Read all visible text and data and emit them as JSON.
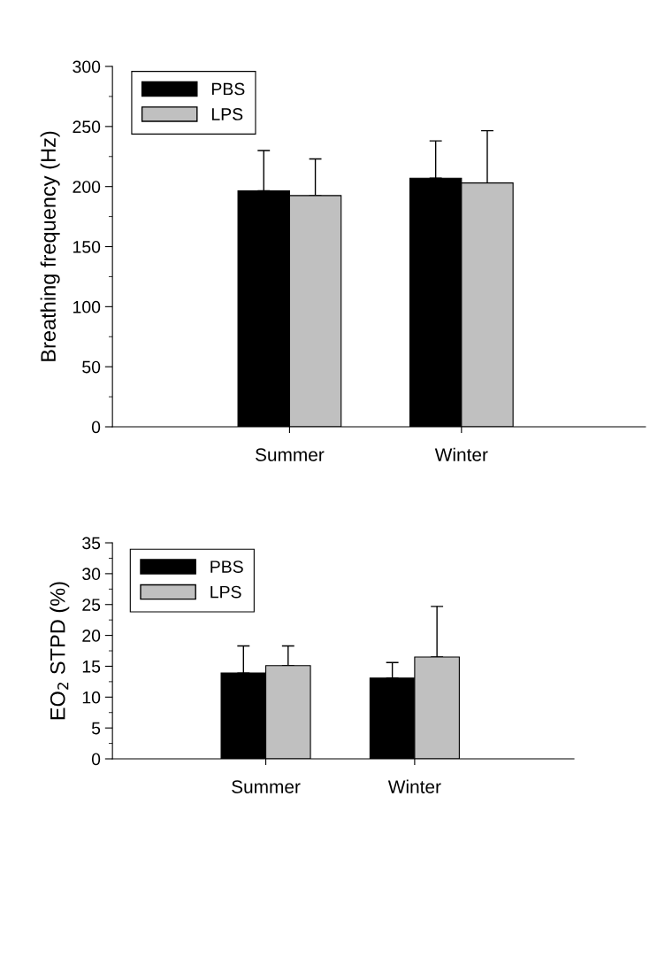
{
  "chart_data": [
    {
      "type": "bar",
      "ylabel": "Breathing frequency (Hz)",
      "categories": [
        "Summer",
        "Winter"
      ],
      "series": [
        {
          "name": "PBS",
          "color": "#000000",
          "values": [
            196.5,
            207
          ],
          "errors": [
            [
              196.5,
              230
            ],
            [
              207,
              238
            ]
          ]
        },
        {
          "name": "LPS",
          "color": "#c0c0c0",
          "values": [
            192.5,
            203
          ],
          "errors": [
            [
              192.5,
              223
            ],
            [
              203,
              246.5
            ]
          ]
        }
      ],
      "ylim": [
        0,
        300
      ],
      "yticks": [
        0,
        50,
        100,
        150,
        200,
        250,
        300
      ],
      "grid": false,
      "legend": "top left"
    },
    {
      "type": "bar",
      "ylabel": "EO$_{2}$ STPD (%)",
      "categories": [
        "Summer",
        "Winter"
      ],
      "series": [
        {
          "name": "PBS",
          "color": "#000000",
          "values": [
            13.9,
            13.1
          ],
          "errors": [
            [
              13.9,
              18.3
            ],
            [
              13.1,
              15.6
            ]
          ]
        },
        {
          "name": "LPS",
          "color": "#c0c0c0",
          "values": [
            15.1,
            16.5
          ],
          "errors": [
            [
              15.1,
              18.3
            ],
            [
              16.5,
              24.7
            ]
          ]
        }
      ],
      "ylim": [
        0,
        35
      ],
      "yticks": [
        0,
        5,
        10,
        15,
        20,
        25,
        30,
        35
      ],
      "grid": false,
      "legend": "top left"
    }
  ]
}
